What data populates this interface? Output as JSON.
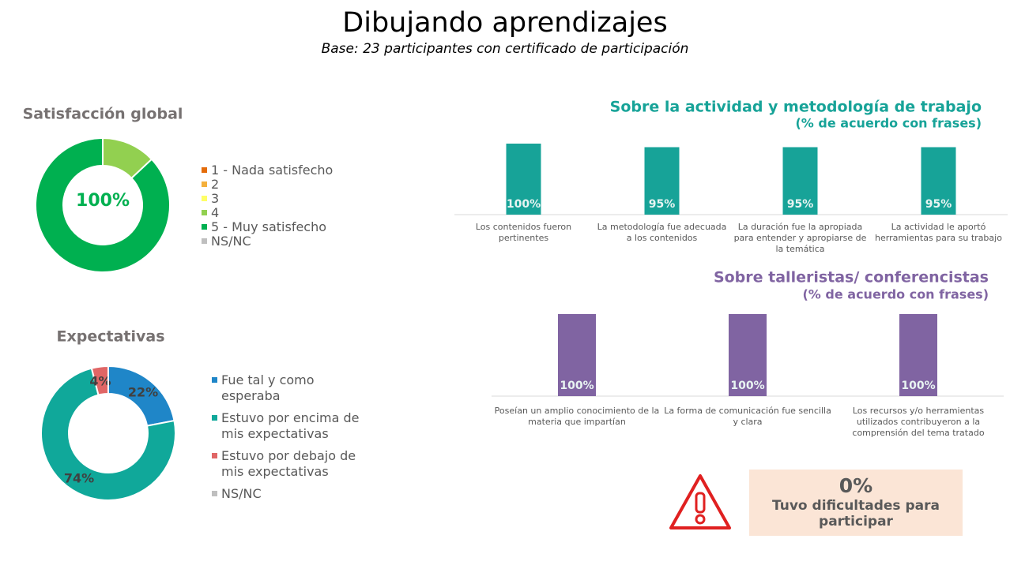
{
  "header": {
    "title": "Dibujando aprendizajes",
    "subtitle": "Base: 23 participantes con certificado de participación"
  },
  "chart_data": [
    {
      "type": "donut",
      "title": "Satisfacción global",
      "center_label": "100%",
      "categories": [
        "1 - Nada satisfecho",
        "2",
        "3",
        "4",
        "5 - Muy satisfecho",
        "NS/NC"
      ],
      "values": [
        0,
        0,
        0,
        13,
        87,
        0
      ],
      "colors": [
        "#e46c0a",
        "#f4b03c",
        "#ffff66",
        "#92d050",
        "#00b050",
        "#bfbfbf"
      ]
    },
    {
      "type": "donut",
      "title": "Expectativas",
      "categories": [
        "Fue tal y como esperaba",
        "Estuvo por encima de mis expectativas",
        "Estuvo por debajo de mis expectativas",
        "NS/NC"
      ],
      "values": [
        22,
        74,
        4,
        0
      ],
      "value_labels": [
        "22%",
        "74%",
        "4%",
        null
      ],
      "colors": [
        "#1f86c8",
        "#10a89a",
        "#e06666",
        "#bfbfbf"
      ]
    },
    {
      "type": "bar",
      "title": "Sobre la actividad y metodología de trabajo",
      "subtitle": "(% de acuerdo con frases)",
      "categories": [
        "Los contenidos fueron pertinentes",
        "La metodología fue adecuada a los contenidos",
        "La duración fue la apropiada para entender y apropiarse de la temática",
        "La actividad le aportó herramientas para su trabajo"
      ],
      "values": [
        100,
        95,
        95,
        95
      ],
      "value_labels": [
        "100%",
        "95%",
        "95%",
        "95%"
      ],
      "color": "#17a398",
      "ylim": [
        0,
        100
      ]
    },
    {
      "type": "bar",
      "title": "Sobre talleristas/ conferencistas",
      "subtitle": "(% de acuerdo con frases)",
      "categories": [
        "Poseían un amplio conocimiento de la materia que impartían",
        "La forma de comunicación fue sencilla y clara",
        "Los recursos y/o herramientas utilizados contribuyeron a la comprensión del tema tratado"
      ],
      "values": [
        100,
        100,
        100
      ],
      "value_labels": [
        "100%",
        "100%",
        "100%"
      ],
      "color": "#8064a2",
      "ylim": [
        0,
        100
      ]
    }
  ],
  "callout": {
    "value": "0%",
    "text": "Tuvo dificultades para participar"
  }
}
